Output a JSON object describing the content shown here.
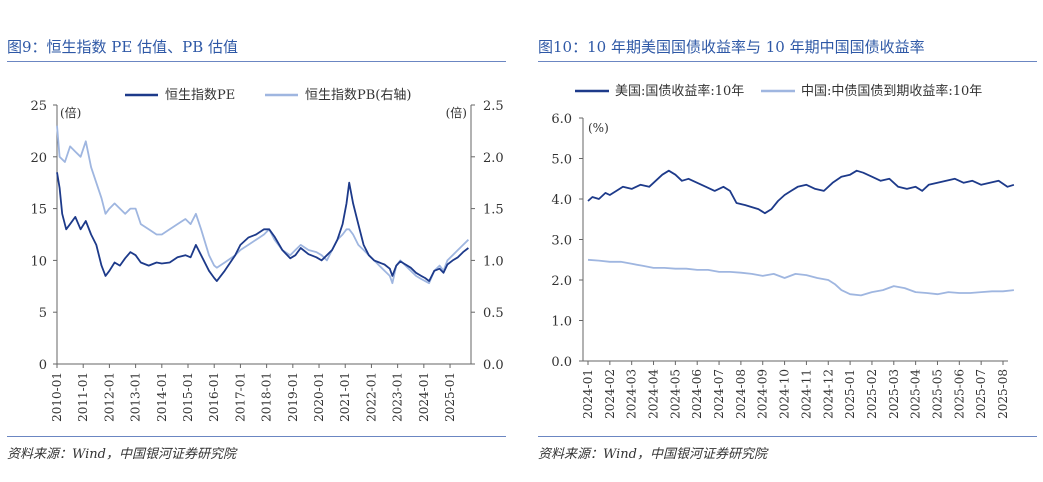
{
  "charts": [
    {
      "figure_title": "图9：恒生指数 PE 估值、PB 估值",
      "source": "资料来源：Wind，中国银河证券研究院",
      "colors": {
        "pe": "#1d3a8a",
        "pb": "#9fb6e0"
      }
    },
    {
      "figure_title": "图10：10 年期美国国债收益率与 10 年期中国国债收益率",
      "source": "资料来源：Wind，中国银河证券研究院",
      "colors": {
        "us": "#1d3a8a",
        "cn": "#9fb6e0"
      }
    }
  ],
  "chart_data": [
    {
      "type": "line",
      "title": "",
      "left_axis_unit": "(倍)",
      "right_axis_unit": "(倍)",
      "ylim_left": [
        0,
        25
      ],
      "ylim_right": [
        0.0,
        2.5
      ],
      "yticks_left": [
        "25",
        "20",
        "15",
        "10",
        "5",
        "0"
      ],
      "yticks_right": [
        "2.5",
        "2.0",
        "1.5",
        "1.0",
        "0.5",
        "0.0"
      ],
      "xticks": [
        "2010-01",
        "2011-01",
        "2012-01",
        "2013-01",
        "2014-01",
        "2015-01",
        "2016-01",
        "2017-01",
        "2018-01",
        "2019-01",
        "2020-01",
        "2021-01",
        "2022-01",
        "2023-01",
        "2024-01",
        "2025-01"
      ],
      "legend_position": "top",
      "series": [
        {
          "name": "恒生指数PE",
          "axis": "left",
          "x": [
            2010.0,
            2010.1,
            2010.2,
            2010.35,
            2010.5,
            2010.7,
            2010.9,
            2011.1,
            2011.3,
            2011.5,
            2011.7,
            2011.85,
            2012.0,
            2012.2,
            2012.4,
            2012.6,
            2012.8,
            2013.0,
            2013.2,
            2013.5,
            2013.8,
            2014.0,
            2014.3,
            2014.6,
            2014.9,
            2015.1,
            2015.3,
            2015.5,
            2015.8,
            2016.0,
            2016.1,
            2016.4,
            2016.8,
            2017.0,
            2017.3,
            2017.6,
            2017.9,
            2018.1,
            2018.3,
            2018.6,
            2018.9,
            2019.1,
            2019.3,
            2019.6,
            2019.9,
            2020.1,
            2020.3,
            2020.5,
            2020.7,
            2020.9,
            2021.05,
            2021.15,
            2021.3,
            2021.5,
            2021.7,
            2021.9,
            2022.1,
            2022.3,
            2022.5,
            2022.7,
            2022.8,
            2022.95,
            2023.1,
            2023.3,
            2023.5,
            2023.7,
            2023.9,
            2024.05,
            2024.2,
            2024.4,
            2024.6,
            2024.75,
            2024.9,
            2025.1,
            2025.3,
            2025.5,
            2025.7
          ],
          "values": [
            18.5,
            17.0,
            14.5,
            13.0,
            13.5,
            14.2,
            13.0,
            13.8,
            12.5,
            11.5,
            9.5,
            8.5,
            9.0,
            9.8,
            9.5,
            10.2,
            10.8,
            10.5,
            9.8,
            9.5,
            9.8,
            9.7,
            9.8,
            10.3,
            10.5,
            10.3,
            11.5,
            10.5,
            9.0,
            8.3,
            8.0,
            9.0,
            10.5,
            11.5,
            12.2,
            12.5,
            13.0,
            13.0,
            12.3,
            11.0,
            10.2,
            10.5,
            11.2,
            10.6,
            10.3,
            10.0,
            10.5,
            11.0,
            12.0,
            13.5,
            15.5,
            17.5,
            15.5,
            13.5,
            11.5,
            10.5,
            10.0,
            9.8,
            9.6,
            9.2,
            8.5,
            9.5,
            9.9,
            9.6,
            9.3,
            8.8,
            8.5,
            8.3,
            8.0,
            9.0,
            9.2,
            8.8,
            9.6,
            10.0,
            10.3,
            10.8,
            11.2
          ]
        },
        {
          "name": "恒生指数PB(右轴)",
          "axis": "right",
          "x": [
            2010.0,
            2010.1,
            2010.3,
            2010.5,
            2010.7,
            2010.9,
            2011.1,
            2011.3,
            2011.5,
            2011.7,
            2011.85,
            2012.0,
            2012.2,
            2012.4,
            2012.6,
            2012.8,
            2013.0,
            2013.2,
            2013.5,
            2013.8,
            2014.0,
            2014.3,
            2014.6,
            2014.9,
            2015.1,
            2015.3,
            2015.5,
            2015.8,
            2016.0,
            2016.1,
            2016.4,
            2016.8,
            2017.0,
            2017.3,
            2017.6,
            2017.9,
            2018.1,
            2018.3,
            2018.6,
            2018.9,
            2019.1,
            2019.3,
            2019.6,
            2019.9,
            2020.1,
            2020.3,
            2020.5,
            2020.7,
            2020.9,
            2021.05,
            2021.15,
            2021.3,
            2021.5,
            2021.7,
            2021.9,
            2022.1,
            2022.3,
            2022.5,
            2022.7,
            2022.8,
            2022.95,
            2023.1,
            2023.3,
            2023.5,
            2023.7,
            2023.9,
            2024.05,
            2024.2,
            2024.4,
            2024.6,
            2024.75,
            2024.9,
            2025.1,
            2025.3,
            2025.5,
            2025.7
          ],
          "values": [
            2.3,
            2.0,
            1.95,
            2.1,
            2.05,
            2.0,
            2.15,
            1.9,
            1.75,
            1.6,
            1.45,
            1.5,
            1.55,
            1.5,
            1.45,
            1.5,
            1.5,
            1.35,
            1.3,
            1.25,
            1.25,
            1.3,
            1.35,
            1.4,
            1.35,
            1.45,
            1.3,
            1.05,
            0.95,
            0.93,
            0.98,
            1.05,
            1.1,
            1.15,
            1.2,
            1.25,
            1.3,
            1.2,
            1.1,
            1.05,
            1.1,
            1.15,
            1.1,
            1.08,
            1.05,
            1.0,
            1.1,
            1.2,
            1.25,
            1.3,
            1.3,
            1.25,
            1.15,
            1.1,
            1.05,
            1.0,
            0.95,
            0.9,
            0.85,
            0.78,
            0.95,
            1.0,
            0.95,
            0.9,
            0.85,
            0.82,
            0.8,
            0.78,
            0.9,
            0.95,
            0.9,
            1.0,
            1.05,
            1.1,
            1.15,
            1.2
          ]
        }
      ]
    },
    {
      "type": "line",
      "title": "",
      "axis_unit": "(%)",
      "ylim": [
        0.0,
        6.0
      ],
      "yticks": [
        "6.0",
        "5.0",
        "4.0",
        "3.0",
        "2.0",
        "1.0",
        "0.0"
      ],
      "xticks": [
        "2024-01",
        "2024-02",
        "2024-03",
        "2024-04",
        "2024-05",
        "2024-06",
        "2024-07",
        "2024-08",
        "2024-09",
        "2024-10",
        "2024-11",
        "2024-12",
        "2025-01",
        "2025-02",
        "2025-03",
        "2025-04",
        "2025-05",
        "2025-06",
        "2025-07",
        "2025-08"
      ],
      "legend_position": "top",
      "series": [
        {
          "name": "美国:国债收益率:10年",
          "x": [
            0.0,
            0.2,
            0.5,
            0.8,
            1.0,
            1.3,
            1.6,
            2.0,
            2.4,
            2.8,
            3.1,
            3.4,
            3.7,
            4.0,
            4.3,
            4.6,
            5.0,
            5.4,
            5.8,
            6.2,
            6.5,
            6.8,
            7.2,
            7.5,
            7.8,
            8.1,
            8.4,
            8.7,
            9.0,
            9.3,
            9.6,
            10.0,
            10.4,
            10.8,
            11.2,
            11.6,
            12.0,
            12.3,
            12.6,
            13.0,
            13.4,
            13.8,
            14.2,
            14.6,
            15.0,
            15.3,
            15.6,
            16.0,
            16.4,
            16.8,
            17.2,
            17.6,
            18.0,
            18.4,
            18.8,
            19.2,
            19.5
          ],
          "values": [
            3.95,
            4.05,
            4.0,
            4.15,
            4.1,
            4.2,
            4.3,
            4.25,
            4.35,
            4.3,
            4.45,
            4.6,
            4.7,
            4.6,
            4.45,
            4.5,
            4.4,
            4.3,
            4.2,
            4.3,
            4.2,
            3.9,
            3.85,
            3.8,
            3.75,
            3.65,
            3.75,
            3.95,
            4.1,
            4.2,
            4.3,
            4.35,
            4.25,
            4.2,
            4.4,
            4.55,
            4.6,
            4.7,
            4.65,
            4.55,
            4.45,
            4.5,
            4.3,
            4.25,
            4.3,
            4.2,
            4.35,
            4.4,
            4.45,
            4.5,
            4.4,
            4.45,
            4.35,
            4.4,
            4.45,
            4.3,
            4.35
          ]
        },
        {
          "name": "中国:中债国债到期收益率:10年",
          "x": [
            0.0,
            0.5,
            1.0,
            1.5,
            2.0,
            2.5,
            3.0,
            3.5,
            4.0,
            4.5,
            5.0,
            5.5,
            6.0,
            6.5,
            7.0,
            7.5,
            8.0,
            8.5,
            9.0,
            9.5,
            10.0,
            10.5,
            11.0,
            11.3,
            11.6,
            12.0,
            12.5,
            13.0,
            13.5,
            14.0,
            14.5,
            15.0,
            15.5,
            16.0,
            16.5,
            17.0,
            17.5,
            18.0,
            18.5,
            19.0,
            19.5
          ],
          "values": [
            2.5,
            2.48,
            2.45,
            2.45,
            2.4,
            2.35,
            2.3,
            2.3,
            2.28,
            2.28,
            2.25,
            2.25,
            2.2,
            2.2,
            2.18,
            2.15,
            2.1,
            2.15,
            2.05,
            2.15,
            2.12,
            2.05,
            2.0,
            1.9,
            1.75,
            1.65,
            1.62,
            1.7,
            1.75,
            1.85,
            1.8,
            1.7,
            1.68,
            1.65,
            1.7,
            1.68,
            1.68,
            1.7,
            1.72,
            1.72,
            1.75
          ]
        }
      ]
    }
  ]
}
